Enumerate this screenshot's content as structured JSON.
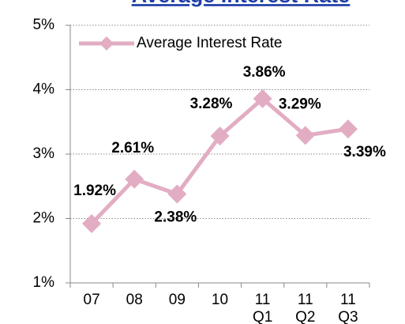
{
  "chart_data": {
    "type": "line",
    "title": "Average Interest Rate",
    "categories": [
      "07",
      "08",
      "09",
      "10",
      "11 Q1",
      "11 Q2",
      "11 Q3"
    ],
    "series": [
      {
        "name": "Average Interest Rate",
        "color": "#e2adc3",
        "values": [
          1.92,
          2.61,
          2.38,
          3.28,
          3.86,
          3.29,
          3.39
        ],
        "value_labels": [
          "1.92%",
          "2.61%",
          "2.38%",
          "3.28%",
          "3.86%",
          "3.29%",
          "3.39%"
        ]
      }
    ],
    "ylim": [
      1,
      5
    ],
    "yticks": [
      {
        "value": 1,
        "label": "1%"
      },
      {
        "value": 2,
        "label": "2%"
      },
      {
        "value": 3,
        "label": "3%"
      },
      {
        "value": 4,
        "label": "4%"
      },
      {
        "value": 5,
        "label": "5%"
      }
    ],
    "grid": true,
    "legend": "top-left"
  }
}
